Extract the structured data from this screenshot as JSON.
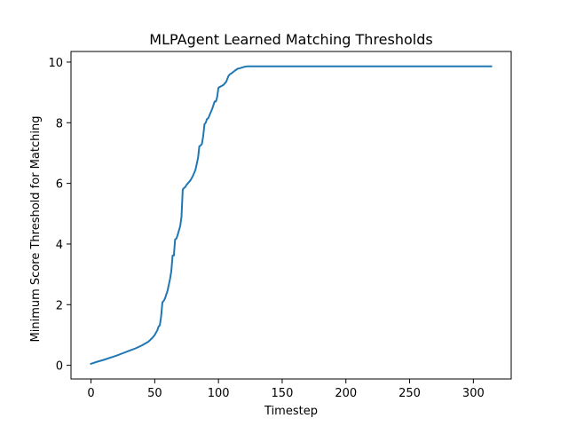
{
  "chart_data": {
    "type": "line",
    "title": "MLPAgent Learned Matching Thresholds",
    "xlabel": "Timestep",
    "ylabel": "Minimum Score Threshold for Matching",
    "xlim": [
      -15.7,
      329.7
    ],
    "ylim": [
      -0.45,
      10.35
    ],
    "xticks": [
      0,
      50,
      100,
      150,
      200,
      250,
      300
    ],
    "yticks": [
      0,
      2,
      4,
      6,
      8,
      10
    ],
    "grid": false,
    "series": [
      {
        "color": "#1f77b4",
        "x": [
          0,
          5,
          10,
          15,
          20,
          25,
          30,
          35,
          40,
          45,
          48,
          50,
          52,
          53,
          54,
          55,
          56,
          57,
          58,
          60,
          62,
          63,
          64,
          65,
          66,
          67,
          68,
          70,
          71,
          72,
          73,
          74,
          75,
          78,
          80,
          82,
          84,
          85,
          86,
          87,
          88,
          89,
          90,
          91,
          92,
          93,
          95,
          97,
          98,
          99,
          100,
          101,
          102,
          104,
          106,
          107,
          108,
          109,
          110,
          113,
          115,
          117,
          120,
          123,
          126,
          130,
          150,
          200,
          250,
          300,
          314
        ],
        "y": [
          0.05,
          0.12,
          0.18,
          0.25,
          0.32,
          0.4,
          0.48,
          0.56,
          0.66,
          0.78,
          0.9,
          1.0,
          1.15,
          1.28,
          1.32,
          1.6,
          2.08,
          2.12,
          2.2,
          2.45,
          2.85,
          3.1,
          3.62,
          3.62,
          4.15,
          4.18,
          4.3,
          4.6,
          4.9,
          5.8,
          5.85,
          5.88,
          5.95,
          6.1,
          6.25,
          6.45,
          6.85,
          7.22,
          7.25,
          7.3,
          7.55,
          7.95,
          8.0,
          8.12,
          8.15,
          8.25,
          8.45,
          8.7,
          8.7,
          8.85,
          9.15,
          9.18,
          9.2,
          9.25,
          9.35,
          9.45,
          9.55,
          9.6,
          9.62,
          9.72,
          9.78,
          9.8,
          9.84,
          9.86,
          9.86,
          9.86,
          9.86,
          9.86,
          9.86,
          9.86,
          9.86
        ]
      }
    ]
  }
}
